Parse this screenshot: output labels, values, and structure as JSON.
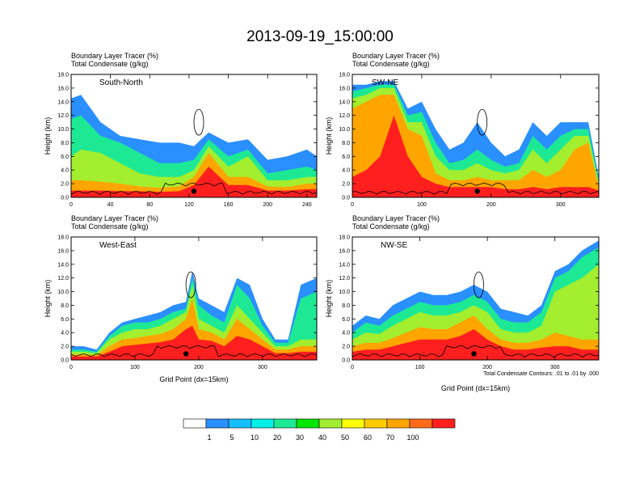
{
  "title": "2013-09-19_15:00:00",
  "header_lines": [
    "Boundary Layer Tracer    (%)",
    "Total Condensate    (g/kg)"
  ],
  "ylabel": "Height (km)",
  "xlabel": "Grid Point (dx=15km)",
  "contour_note": "Total Condensate Contours: .01 to .01 by .000",
  "colorbar": {
    "colors": [
      "#ffffff",
      "#2a8fff",
      "#15bfff",
      "#00f0e8",
      "#1de994",
      "#00e600",
      "#a2ee2f",
      "#ffff00",
      "#ffcc00",
      "#ffa500",
      "#ff6a1a",
      "#ff1f1f"
    ],
    "labels": [
      "1",
      "5",
      "10",
      "20",
      "30",
      "40",
      "50",
      "60",
      "70",
      "100"
    ]
  },
  "chart_data": [
    {
      "type": "heatmap",
      "name": "South-North",
      "xlim": [
        0,
        250
      ],
      "ylim": [
        0,
        18
      ],
      "xticks": [
        "0",
        "40",
        "80",
        "120",
        "160",
        "200",
        "240"
      ],
      "yticks": [
        "0.0",
        "2.0",
        "4.0",
        "6.0",
        "8.0",
        "10.0",
        "12.0",
        "14.0",
        "16.0",
        "18.0"
      ],
      "dot_x": 125,
      "layers": [
        {
          "level": 1,
          "x": [
            0,
            10,
            30,
            50,
            70,
            90,
            110,
            125,
            140,
            160,
            180,
            200,
            220,
            240,
            250
          ],
          "top": [
            14.5,
            15,
            11,
            9,
            8.5,
            8,
            8,
            7.5,
            9.5,
            8,
            8.5,
            5.5,
            6,
            7,
            6
          ]
        },
        {
          "level": 4,
          "x": [
            0,
            10,
            30,
            50,
            70,
            90,
            110,
            125,
            140,
            160,
            180,
            200,
            220,
            240,
            250
          ],
          "top": [
            11.5,
            12,
            9,
            8,
            6.5,
            5,
            5,
            5.5,
            8.5,
            6,
            7,
            3.5,
            4,
            4.5,
            4
          ]
        },
        {
          "level": 6,
          "x": [
            0,
            10,
            30,
            50,
            70,
            90,
            110,
            125,
            140,
            160,
            180,
            200,
            220,
            240,
            250
          ],
          "top": [
            6,
            7,
            6.5,
            5,
            3.5,
            3,
            3,
            4,
            7.5,
            4.5,
            6,
            2.5,
            2.5,
            3,
            3
          ]
        },
        {
          "level": 9,
          "x": [
            0,
            10,
            30,
            50,
            70,
            90,
            110,
            125,
            140,
            160,
            180,
            200,
            220,
            240,
            250
          ],
          "top": [
            2.5,
            2.5,
            2.3,
            2,
            1.6,
            1.4,
            1.6,
            3,
            6.5,
            3,
            3,
            1.6,
            1.5,
            2,
            2
          ]
        },
        {
          "level": 11,
          "x": [
            0,
            10,
            30,
            50,
            70,
            90,
            110,
            125,
            140,
            160,
            180,
            200,
            220,
            240,
            250
          ],
          "top": [
            1,
            1,
            1,
            0.9,
            0.9,
            0.8,
            0.9,
            1.8,
            4.5,
            1.8,
            1.8,
            1,
            1,
            1.2,
            1.2
          ]
        }
      ]
    },
    {
      "type": "heatmap",
      "name": "SW-NE",
      "xlim": [
        0,
        355
      ],
      "ylim": [
        0,
        18
      ],
      "xticks": [
        "0",
        "100",
        "200",
        "300"
      ],
      "yticks": [
        "0.0",
        "2.0",
        "4.0",
        "6.0",
        "8.0",
        "10.0",
        "12.0",
        "14.0",
        "16.0",
        "18.0"
      ],
      "dot_x": 180,
      "layers": [
        {
          "level": 1,
          "x": [
            0,
            20,
            40,
            60,
            80,
            100,
            120,
            140,
            160,
            180,
            200,
            220,
            240,
            260,
            280,
            300,
            320,
            340,
            355
          ],
          "top": [
            16.5,
            16.5,
            17,
            17,
            13,
            14,
            10,
            7,
            8,
            11,
            8,
            6,
            7,
            11,
            9,
            11,
            11,
            11,
            3
          ]
        },
        {
          "level": 4,
          "x": [
            0,
            20,
            40,
            60,
            80,
            100,
            120,
            140,
            160,
            180,
            200,
            220,
            240,
            260,
            280,
            300,
            320,
            340,
            355
          ],
          "top": [
            15.5,
            16,
            16.5,
            16.5,
            12,
            12.5,
            8,
            5,
            5.5,
            7,
            5.5,
            4.5,
            5,
            9,
            7,
            9,
            10,
            10,
            2.5
          ]
        },
        {
          "level": 6,
          "x": [
            0,
            20,
            40,
            60,
            80,
            100,
            120,
            140,
            160,
            180,
            200,
            220,
            240,
            260,
            280,
            300,
            320,
            340,
            355
          ],
          "top": [
            14.5,
            15,
            16,
            16,
            11,
            11,
            6,
            4,
            4,
            5,
            4,
            3.5,
            4,
            7,
            5,
            7,
            9,
            9,
            2
          ]
        },
        {
          "level": 9,
          "x": [
            0,
            20,
            40,
            60,
            80,
            100,
            120,
            140,
            160,
            180,
            200,
            220,
            240,
            260,
            280,
            300,
            320,
            340,
            355
          ],
          "top": [
            13,
            14,
            15,
            15,
            10,
            9,
            3.5,
            2.5,
            2.5,
            3,
            2.5,
            2.5,
            2.5,
            4,
            3,
            4,
            7,
            8,
            1.5
          ]
        },
        {
          "level": 11,
          "x": [
            0,
            20,
            40,
            60,
            80,
            100,
            120,
            140,
            160,
            180,
            200,
            220,
            240,
            260,
            280,
            300,
            320,
            340,
            355
          ],
          "top": [
            3,
            4,
            6,
            12,
            6,
            3,
            2,
            1.5,
            1.5,
            1.5,
            1.5,
            1.2,
            1.2,
            1.5,
            1.2,
            1.5,
            1.5,
            1.5,
            1
          ]
        }
      ]
    },
    {
      "type": "heatmap",
      "name": "West-East",
      "xlim": [
        0,
        385
      ],
      "ylim": [
        0,
        18
      ],
      "xticks": [
        "0",
        "100",
        "200",
        "300"
      ],
      "yticks": [
        "0.0",
        "2.0",
        "4.0",
        "6.0",
        "8.0",
        "10.0",
        "12.0",
        "14.0",
        "16.0",
        "18.0"
      ],
      "dot_x": 180,
      "layers": [
        {
          "level": 1,
          "x": [
            0,
            20,
            40,
            60,
            80,
            100,
            120,
            140,
            160,
            180,
            190,
            200,
            220,
            240,
            260,
            280,
            300,
            320,
            340,
            360,
            385
          ],
          "top": [
            2,
            2,
            1.5,
            4,
            5.5,
            6,
            6.5,
            7,
            8,
            8.5,
            13,
            9,
            8,
            7,
            12,
            11,
            6,
            3,
            3,
            11,
            12
          ]
        },
        {
          "level": 4,
          "x": [
            0,
            20,
            40,
            60,
            80,
            100,
            120,
            140,
            160,
            180,
            190,
            200,
            220,
            240,
            260,
            280,
            300,
            320,
            340,
            360,
            385
          ],
          "top": [
            1.5,
            1.5,
            1.2,
            3.5,
            5,
            5.5,
            5.5,
            6,
            7,
            7.5,
            12,
            8,
            6.5,
            5.5,
            11,
            9,
            5,
            2.5,
            2.5,
            9,
            10
          ]
        },
        {
          "level": 6,
          "x": [
            0,
            20,
            40,
            60,
            80,
            100,
            120,
            140,
            160,
            180,
            190,
            200,
            220,
            240,
            260,
            280,
            300,
            320,
            340,
            360,
            385
          ],
          "top": [
            1.2,
            1.2,
            1,
            3,
            4,
            4.5,
            4.5,
            5,
            6,
            7,
            11,
            6,
            5,
            4,
            8,
            6,
            4,
            2,
            2,
            3,
            3
          ]
        },
        {
          "level": 9,
          "x": [
            0,
            20,
            40,
            60,
            80,
            100,
            120,
            140,
            160,
            180,
            190,
            200,
            220,
            240,
            260,
            280,
            300,
            320,
            340,
            360,
            385
          ],
          "top": [
            0.8,
            0.8,
            0.7,
            2,
            3,
            3.2,
            3.5,
            3.8,
            4.5,
            6,
            9,
            4.5,
            4,
            3,
            6,
            4.5,
            3,
            1.5,
            1.5,
            2,
            2
          ]
        },
        {
          "level": 11,
          "x": [
            0,
            20,
            40,
            60,
            80,
            100,
            120,
            140,
            160,
            180,
            190,
            200,
            220,
            240,
            260,
            280,
            300,
            320,
            340,
            360,
            385
          ],
          "top": [
            0.5,
            0.5,
            0.5,
            1.2,
            2,
            2.2,
            2.4,
            2.6,
            3,
            4.5,
            5,
            3,
            2.8,
            2,
            3.5,
            3,
            2,
            1,
            1,
            1.2,
            1.2
          ]
        }
      ]
    },
    {
      "type": "heatmap",
      "name": "NW-SE",
      "xlim": [
        0,
        365
      ],
      "ylim": [
        0,
        18
      ],
      "xticks": [
        "0",
        "100",
        "200",
        "300"
      ],
      "yticks": [
        "0.0",
        "2.0",
        "4.0",
        "6.0",
        "8.0",
        "10.0",
        "12.0",
        "14.0",
        "16.0",
        "18.0"
      ],
      "dot_x": 180,
      "layers": [
        {
          "level": 1,
          "x": [
            0,
            20,
            40,
            60,
            80,
            100,
            120,
            140,
            160,
            180,
            200,
            220,
            240,
            260,
            280,
            300,
            320,
            340,
            365
          ],
          "top": [
            5,
            6.5,
            6,
            8,
            9,
            10,
            9.5,
            9.5,
            10,
            11,
            10,
            7.5,
            7,
            6.5,
            8,
            13,
            14,
            16,
            17.5
          ]
        },
        {
          "level": 4,
          "x": [
            0,
            20,
            40,
            60,
            80,
            100,
            120,
            140,
            160,
            180,
            200,
            220,
            240,
            260,
            280,
            300,
            320,
            340,
            365
          ],
          "top": [
            4,
            5.5,
            5,
            6.5,
            7.5,
            8.5,
            8,
            8,
            8.5,
            9.5,
            8.5,
            6,
            5.5,
            5.5,
            7,
            12,
            13,
            15,
            16.5
          ]
        },
        {
          "level": 6,
          "x": [
            0,
            20,
            40,
            60,
            80,
            100,
            120,
            140,
            160,
            180,
            200,
            220,
            240,
            260,
            280,
            300,
            320,
            340,
            365
          ],
          "top": [
            3,
            4,
            3.8,
            5,
            6,
            7,
            6.5,
            6.5,
            7,
            8,
            7,
            4.5,
            4,
            4,
            5,
            10,
            11,
            12,
            14
          ]
        },
        {
          "level": 9,
          "x": [
            0,
            20,
            40,
            60,
            80,
            100,
            120,
            140,
            160,
            180,
            200,
            220,
            240,
            260,
            280,
            300,
            320,
            340,
            365
          ],
          "top": [
            2,
            2.5,
            2.5,
            3.2,
            4,
            4.8,
            4.5,
            4.5,
            5.5,
            6.5,
            4.5,
            3,
            2.5,
            2.5,
            3,
            4,
            3.5,
            3,
            3
          ]
        },
        {
          "level": 11,
          "x": [
            0,
            20,
            40,
            60,
            80,
            100,
            120,
            140,
            160,
            180,
            200,
            220,
            240,
            260,
            280,
            300,
            320,
            340,
            365
          ],
          "top": [
            1.2,
            1.5,
            1.5,
            2,
            2.5,
            3,
            3,
            3,
            3.5,
            4.5,
            3,
            2,
            1.5,
            1.5,
            1.8,
            2,
            2,
            1.5,
            1.5
          ]
        }
      ]
    }
  ]
}
